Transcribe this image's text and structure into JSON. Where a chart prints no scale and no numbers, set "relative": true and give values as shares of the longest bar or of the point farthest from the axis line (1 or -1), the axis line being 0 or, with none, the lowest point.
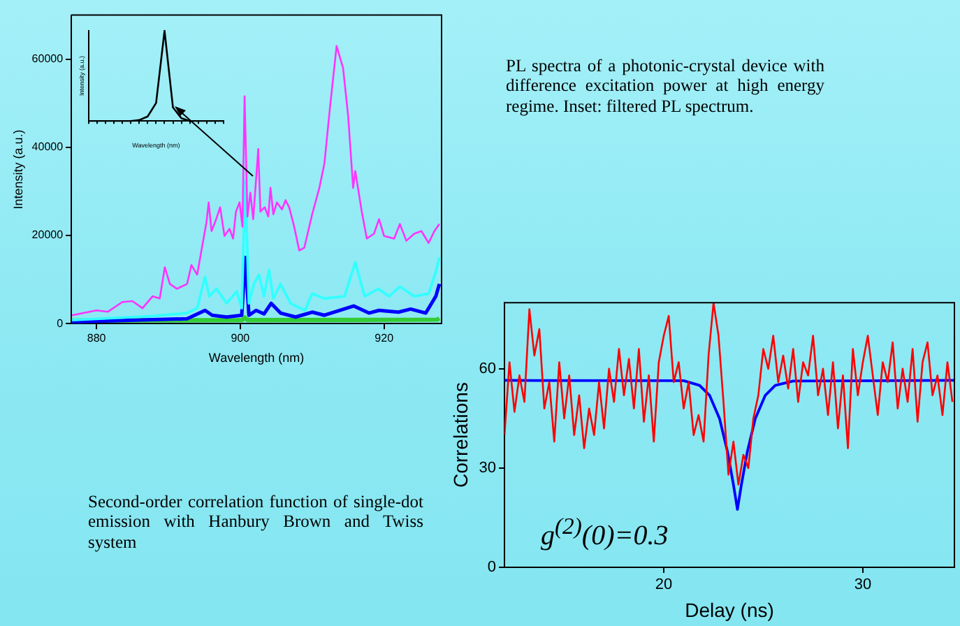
{
  "chart_data": [
    {
      "type": "line",
      "xlabel": "Wavelength (nm)",
      "ylabel": "Intensity (a.u.)",
      "xlim": [
        876.5,
        928
      ],
      "xticks": [
        880,
        900,
        920
      ],
      "ylim": [
        0,
        70000
      ],
      "yticks": [
        0,
        20000,
        40000,
        60000
      ],
      "annotations": [
        "PL spectra of a photonic-crystal device with difference excitation power at high energy regime. Inset: filtered PL spectrum."
      ],
      "series": [
        {
          "color": "#ff33ff",
          "x": [
            876.6,
            880,
            881.6,
            883.6,
            885,
            886.4,
            887.8,
            888.8,
            889.5,
            890.2,
            891.2,
            892.6,
            893.2,
            894,
            895.3,
            895.6,
            896,
            896.5,
            897.2,
            897.8,
            898.5,
            899,
            899.4,
            899.9,
            900.3,
            900.6,
            901,
            901.4,
            901.8,
            902.5,
            902.8,
            903.4,
            903.9,
            904.2,
            904.6,
            905.1,
            905.8,
            906.3,
            906.8,
            907.5,
            908.2,
            908.9,
            910,
            911,
            911.7,
            912.5,
            913.4,
            914.3,
            915,
            915.7,
            916,
            916.9,
            917.6,
            918.6,
            919.3,
            920,
            921.4,
            922.2,
            923.1,
            924.2,
            925.2,
            926.2,
            927,
            927.7
          ],
          "values": [
            1900,
            3000,
            2700,
            4900,
            5100,
            3500,
            6200,
            5700,
            12800,
            9000,
            7900,
            9000,
            13300,
            11100,
            23000,
            27500,
            21000,
            23000,
            26400,
            19900,
            21500,
            19300,
            25400,
            27500,
            22000,
            51600,
            24300,
            29700,
            23700,
            39600,
            25400,
            26400,
            24300,
            30800,
            24800,
            27500,
            25900,
            28000,
            26400,
            22000,
            16600,
            17200,
            24800,
            30800,
            36300,
            49400,
            63000,
            58000,
            47200,
            30800,
            34600,
            25400,
            19300,
            20400,
            23700,
            19900,
            19300,
            22600,
            18800,
            20400,
            21000,
            18300,
            21000,
            22600
          ]
        },
        {
          "color": "#33ffff",
          "x": [
            876.6,
            887.8,
            892.6,
            894,
            895.1,
            895.7,
            896.7,
            898.1,
            899.5,
            900.2,
            900.7,
            901.2,
            901.9,
            902.6,
            903.3,
            904,
            904.6,
            905.6,
            907,
            909,
            910,
            911.7,
            914.5,
            916,
            917.3,
            919.2,
            920.7,
            922.2,
            924.2,
            926.2,
            927.2,
            927.7
          ],
          "values": [
            800,
            1700,
            2400,
            3500,
            10600,
            6200,
            7900,
            4600,
            7300,
            3500,
            32500,
            4600,
            9000,
            11100,
            6200,
            12200,
            5700,
            9000,
            4600,
            3000,
            6800,
            5700,
            6200,
            13900,
            6200,
            7900,
            6200,
            8400,
            6200,
            6800,
            11700,
            15000
          ]
        },
        {
          "color": "#0000ff",
          "x": [
            876.6,
            892.6,
            895.1,
            896.1,
            898.1,
            900.2,
            900.7,
            901.2,
            902.2,
            903.3,
            904.3,
            905.6,
            907.7,
            910,
            911.7,
            915.8,
            917.9,
            919.3,
            922,
            923.7,
            925.8,
            927.2,
            927.7
          ],
          "values": [
            400,
            1100,
            3000,
            1900,
            1500,
            1900,
            15000,
            1900,
            3000,
            2200,
            4600,
            2400,
            1500,
            2600,
            1900,
            4000,
            2400,
            3000,
            2600,
            3300,
            2400,
            6200,
            9000
          ]
        },
        {
          "color": "#33cc33",
          "x": [
            876.6,
            900.3,
            900.6,
            901,
            927.4,
            927.7
          ],
          "values": [
            700,
            800,
            1400,
            800,
            900,
            1200
          ]
        }
      ]
    },
    {
      "type": "line",
      "relative": true,
      "xlabel": "Wavelength (nm)",
      "ylabel": "Intensity (a.u.)",
      "categories": [
        null,
        null,
        null,
        null,
        null,
        null,
        null,
        null,
        null,
        null,
        null,
        null,
        null,
        null,
        null,
        null,
        null
      ],
      "series": [
        {
          "color": "#000000",
          "values": [
            0,
            0,
            0,
            0,
            0,
            0,
            0.01,
            0.05,
            0.2,
            1,
            0.15,
            0.03,
            0,
            0,
            0,
            0,
            0
          ]
        }
      ]
    },
    {
      "type": "line",
      "xlabel": "Delay (ns)",
      "ylabel": "Correlations",
      "xlim": [
        12,
        34.6
      ],
      "xticks": [
        20,
        30
      ],
      "ylim": [
        0,
        80
      ],
      "yticks": [
        0,
        30,
        60
      ],
      "annotations": [
        "Second-order correlation function of single-dot emission with Hanbury Brown and Twiss system",
        "g$^{(2)}$(0)=0.3"
      ],
      "series": [
        {
          "color": "#ff0000",
          "x": [
            12,
            12.25,
            12.5,
            12.75,
            13,
            13.25,
            13.5,
            13.75,
            14,
            14.25,
            14.5,
            14.75,
            15,
            15.25,
            15.5,
            15.75,
            16,
            16.25,
            16.5,
            16.75,
            17,
            17.25,
            17.5,
            17.75,
            18,
            18.25,
            18.5,
            18.75,
            19,
            19.25,
            19.5,
            19.75,
            20,
            20.25,
            20.5,
            20.75,
            21,
            21.25,
            21.5,
            21.75,
            22,
            22.25,
            22.5,
            22.75,
            23,
            23.25,
            23.5,
            23.75,
            24,
            24.25,
            24.5,
            24.75,
            25,
            25.25,
            25.5,
            25.75,
            26,
            26.25,
            26.5,
            26.75,
            27,
            27.25,
            27.5,
            27.75,
            28,
            28.25,
            28.5,
            28.75,
            29,
            29.25,
            29.5,
            29.75,
            30,
            30.25,
            30.5,
            30.75,
            31,
            31.25,
            31.5,
            31.75,
            32,
            32.25,
            32.5,
            32.75,
            33,
            33.25,
            33.5,
            33.75,
            34,
            34.25,
            34.5
          ],
          "values": [
            40,
            62,
            47,
            58,
            50,
            78,
            64,
            72,
            48,
            56,
            38,
            62,
            45,
            58,
            40,
            52,
            36,
            48,
            40,
            56,
            42,
            60,
            50,
            66,
            52,
            63,
            48,
            66,
            44,
            58,
            38,
            62,
            70,
            76,
            56,
            62,
            48,
            56,
            40,
            46,
            38,
            64,
            80,
            70,
            50,
            28,
            38,
            25,
            34,
            30,
            45,
            52,
            66,
            60,
            70,
            56,
            64,
            54,
            66,
            50,
            62,
            58,
            70,
            52,
            60,
            46,
            62,
            42,
            58,
            36,
            66,
            52,
            62,
            70,
            58,
            46,
            62,
            56,
            68,
            48,
            60,
            50,
            66,
            44,
            62,
            68,
            52,
            58,
            46,
            62,
            50
          ]
        },
        {
          "color": "#0000ff",
          "x": [
            12,
            21,
            21.8,
            22.3,
            22.8,
            23.2,
            23.5,
            23.7,
            23.9,
            24.2,
            24.6,
            25.1,
            25.6,
            26.5,
            34.6
          ],
          "values": [
            56.5,
            56.4,
            55,
            52,
            45,
            35,
            25,
            17.5,
            25,
            35,
            45,
            52,
            55,
            56.3,
            56.5
          ]
        }
      ]
    }
  ]
}
